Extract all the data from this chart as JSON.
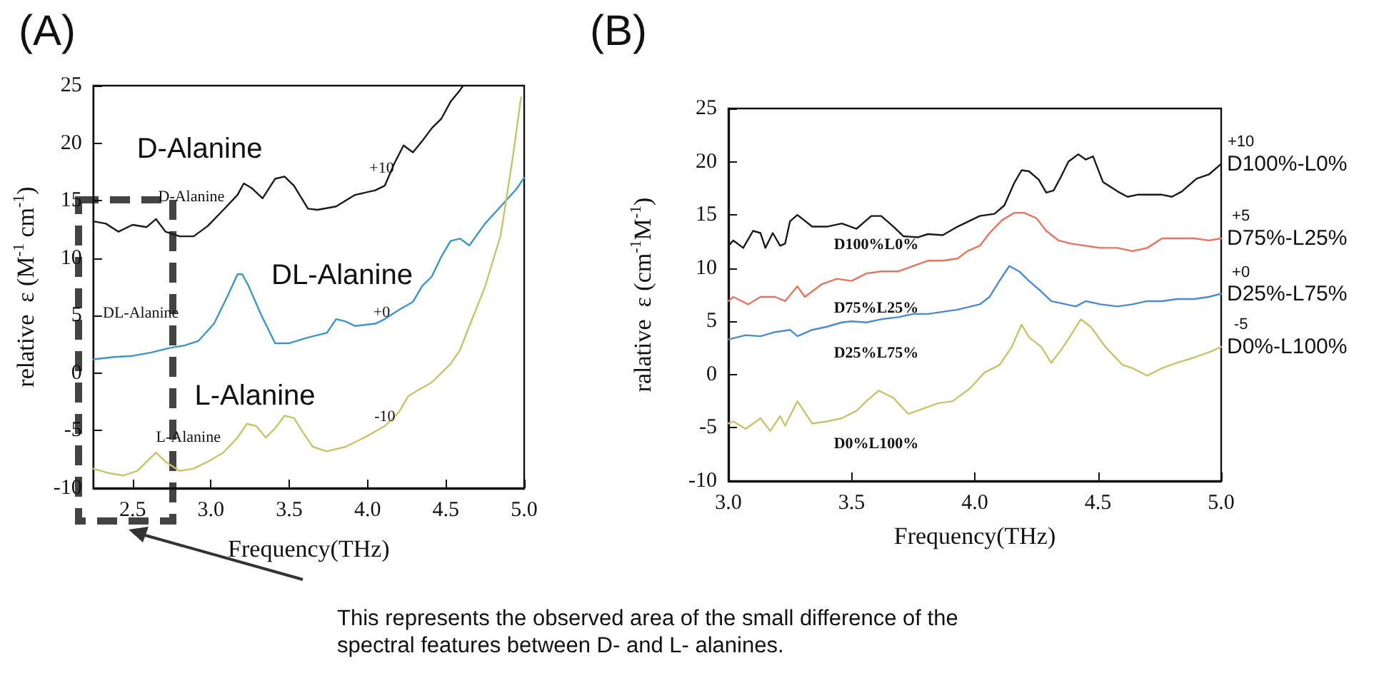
{
  "chart_data": [
    {
      "type": "line",
      "title": "(A)",
      "xlabel": "Frequency(THz)",
      "ylabel": "relative  ε (M$^{-1}$ cm$^{-1}$)",
      "xlim": [
        2.25,
        5.0
      ],
      "xticks": [
        {
          "value": 2.5,
          "label": "2.5"
        },
        {
          "value": 3,
          "label": "3.0"
        },
        {
          "value": 3.5,
          "label": "3.5"
        },
        {
          "value": 4,
          "label": "4.0"
        },
        {
          "value": 4.5,
          "label": "4.5"
        },
        {
          "value": 5,
          "label": "5.0"
        }
      ],
      "ylim": [
        -10,
        25
      ],
      "yticks": [
        -10,
        -5,
        0,
        5,
        10,
        15,
        20,
        25
      ],
      "grid": false,
      "legend": false,
      "marker": "none",
      "series": [
        {
          "color": "#1a1a1a",
          "x": [
            2.25,
            2.33,
            2.41,
            2.5,
            2.59,
            2.65,
            2.71,
            2.8,
            2.89,
            2.98,
            3.08,
            3.17,
            3.21,
            3.26,
            3.33,
            3.41,
            3.47,
            3.53,
            3.62,
            3.68,
            3.8,
            3.92,
            4.05,
            4.11,
            4.17,
            4.23,
            4.29,
            4.35,
            4.41,
            4.47,
            4.53,
            4.59,
            4.61
          ],
          "values": [
            13.2,
            13.0,
            12.3,
            12.9,
            12.7,
            13.4,
            12.3,
            11.9,
            11.9,
            12.8,
            14.2,
            15.5,
            16.5,
            16.1,
            15.2,
            16.9,
            17.1,
            16.3,
            14.3,
            14.2,
            14.5,
            15.5,
            15.9,
            16.3,
            18.2,
            19.8,
            19.2,
            20.2,
            21.3,
            22.1,
            23.6,
            24.6,
            25
          ]
        },
        {
          "color": "#3c96c8",
          "x": [
            2.25,
            2.38,
            2.5,
            2.62,
            2.74,
            2.83,
            2.92,
            3.02,
            3.11,
            3.17,
            3.2,
            3.24,
            3.32,
            3.41,
            3.5,
            3.62,
            3.74,
            3.8,
            3.86,
            3.92,
            4.05,
            4.11,
            4.2,
            4.29,
            4.35,
            4.41,
            4.47,
            4.53,
            4.59,
            4.65,
            4.75,
            4.85,
            4.95,
            5.0
          ],
          "values": [
            1.2,
            1.4,
            1.5,
            1.8,
            2.2,
            2.4,
            2.8,
            4.3,
            6.8,
            8.6,
            8.6,
            7.6,
            5.1,
            2.6,
            2.6,
            3.1,
            3.5,
            4.7,
            4.5,
            4.1,
            4.3,
            4.7,
            5.5,
            6.2,
            7.6,
            8.4,
            10.1,
            11.5,
            11.7,
            11.1,
            13.0,
            14.5,
            16.0,
            17.0
          ]
        },
        {
          "color": "#c9c46a",
          "x": [
            2.25,
            2.35,
            2.44,
            2.53,
            2.59,
            2.65,
            2.71,
            2.8,
            2.89,
            2.98,
            3.08,
            3.17,
            3.23,
            3.29,
            3.35,
            3.41,
            3.47,
            3.53,
            3.59,
            3.65,
            3.74,
            3.86,
            3.98,
            4.11,
            4.2,
            4.26,
            4.32,
            4.41,
            4.47,
            4.53,
            4.59,
            4.65,
            4.75,
            4.85,
            4.93,
            4.98
          ],
          "values": [
            -8.3,
            -8.7,
            -8.9,
            -8.5,
            -7.7,
            -6.9,
            -7.7,
            -8.5,
            -8.3,
            -7.7,
            -6.9,
            -5.6,
            -4.4,
            -4.6,
            -5.6,
            -4.8,
            -3.7,
            -3.9,
            -5.2,
            -6.4,
            -6.8,
            -6.4,
            -5.6,
            -4.6,
            -3.4,
            -2.0,
            -1.5,
            -0.8,
            0.0,
            0.8,
            2.0,
            4.1,
            7.5,
            12,
            19,
            24
          ]
        }
      ],
      "annotations": [
        "D-Alanine",
        "DL-Alanine",
        "L-Alanine",
        "D-Alanine",
        "DL-Alanine",
        "L-Alanine",
        "+10",
        "+0",
        "-10",
        "This represents the observed area of the small difference of the spectral features between D- and L- alanines."
      ]
    },
    {
      "type": "line",
      "title": "(B)",
      "xlabel": "Frequency(THz)",
      "ylabel": "ralative  ε (cm$^{-1}$M$^{-1}$)",
      "xlim": [
        3.0,
        5.0
      ],
      "xticks": [
        {
          "value": 3,
          "label": "3.0"
        },
        {
          "value": 3.5,
          "label": "3.5"
        },
        {
          "value": 4,
          "label": "4.0"
        },
        {
          "value": 4.5,
          "label": "4.5"
        },
        {
          "value": 5,
          "label": "5.0"
        }
      ],
      "ylim": [
        -10,
        25
      ],
      "yticks": [
        -10,
        -5,
        0,
        5,
        10,
        15,
        20,
        25
      ],
      "grid": false,
      "legend": false,
      "marker": "none",
      "series": [
        {
          "name": "D100%-L0%",
          "color": "#1a1a1a",
          "x": [
            3.0,
            3.02,
            3.06,
            3.1,
            3.13,
            3.15,
            3.18,
            3.21,
            3.23,
            3.25,
            3.28,
            3.34,
            3.4,
            3.46,
            3.52,
            3.58,
            3.62,
            3.67,
            3.71,
            3.77,
            3.81,
            3.87,
            3.93,
            4.02,
            4.08,
            4.12,
            4.16,
            4.19,
            4.22,
            4.26,
            4.29,
            4.32,
            4.35,
            4.38,
            4.42,
            4.45,
            4.48,
            4.52,
            4.58,
            4.62,
            4.66,
            4.72,
            4.76,
            4.8,
            4.84,
            4.9,
            4.95,
            5.0
          ],
          "values": [
            12.1,
            12.6,
            11.9,
            13.5,
            13.3,
            11.9,
            13.3,
            12.1,
            12.3,
            14.4,
            15.0,
            13.9,
            13.9,
            14.2,
            13.7,
            14.9,
            14.9,
            13.9,
            13.0,
            12.9,
            13.2,
            13.1,
            13.9,
            14.9,
            15.1,
            15.9,
            18.0,
            19.2,
            19.1,
            18.3,
            17.1,
            17.3,
            18.6,
            20.0,
            20.7,
            20.2,
            20.5,
            18.1,
            17.2,
            16.7,
            16.9,
            16.9,
            16.9,
            16.7,
            17.2,
            18.4,
            18.8,
            19.8
          ]
        },
        {
          "name": "D75%-L25%",
          "color": "#e8735f",
          "x": [
            3.0,
            3.02,
            3.08,
            3.13,
            3.19,
            3.23,
            3.28,
            3.31,
            3.38,
            3.44,
            3.5,
            3.56,
            3.62,
            3.69,
            3.75,
            3.81,
            3.87,
            3.93,
            3.97,
            4.02,
            4.06,
            4.11,
            4.16,
            4.2,
            4.25,
            4.29,
            4.34,
            4.39,
            4.45,
            4.51,
            4.58,
            4.64,
            4.7,
            4.76,
            4.82,
            4.89,
            4.95,
            5.0
          ],
          "values": [
            6.9,
            7.3,
            6.6,
            7.3,
            7.3,
            6.9,
            8.3,
            7.3,
            8.5,
            9.0,
            8.8,
            9.5,
            9.7,
            9.7,
            10.2,
            10.7,
            10.7,
            10.9,
            11.6,
            12.1,
            13.3,
            14.5,
            15.2,
            15.2,
            14.7,
            13.5,
            12.6,
            12.3,
            12.1,
            11.9,
            11.9,
            11.6,
            11.9,
            12.8,
            12.8,
            12.8,
            12.6,
            12.8
          ]
        },
        {
          "name": "D25%-L75%",
          "color": "#4b8bd0",
          "x": [
            3.0,
            3.07,
            3.13,
            3.19,
            3.25,
            3.28,
            3.34,
            3.4,
            3.46,
            3.5,
            3.56,
            3.62,
            3.69,
            3.75,
            3.81,
            3.87,
            3.93,
            4.02,
            4.06,
            4.1,
            4.14,
            4.18,
            4.22,
            4.27,
            4.31,
            4.37,
            4.41,
            4.45,
            4.51,
            4.58,
            4.64,
            4.7,
            4.76,
            4.82,
            4.89,
            4.95,
            5.0
          ],
          "values": [
            3.3,
            3.7,
            3.6,
            4.0,
            4.2,
            3.6,
            4.2,
            4.5,
            4.9,
            5.0,
            4.9,
            5.2,
            5.4,
            5.7,
            5.7,
            5.9,
            6.1,
            6.6,
            7.3,
            8.8,
            10.2,
            9.7,
            8.8,
            7.8,
            6.9,
            6.6,
            6.4,
            6.9,
            6.6,
            6.4,
            6.6,
            6.9,
            6.9,
            7.1,
            7.1,
            7.3,
            7.6
          ]
        },
        {
          "name": "D0%-L100%",
          "color": "#c9c46a",
          "x": [
            3.0,
            3.02,
            3.07,
            3.13,
            3.17,
            3.21,
            3.23,
            3.28,
            3.34,
            3.4,
            3.46,
            3.52,
            3.56,
            3.61,
            3.67,
            3.73,
            3.79,
            3.85,
            3.91,
            3.98,
            4.04,
            4.1,
            4.15,
            4.19,
            4.22,
            4.27,
            4.31,
            4.35,
            4.39,
            4.43,
            4.47,
            4.53,
            4.6,
            4.64,
            4.7,
            4.76,
            4.82,
            4.89,
            4.95,
            5.0
          ],
          "values": [
            -4.6,
            -4.4,
            -5.1,
            -4.1,
            -5.3,
            -3.9,
            -4.8,
            -2.5,
            -4.6,
            -4.4,
            -4.1,
            -3.4,
            -2.5,
            -1.5,
            -2.2,
            -3.7,
            -3.2,
            -2.7,
            -2.5,
            -1.3,
            0.2,
            0.9,
            2.6,
            4.7,
            3.5,
            2.6,
            1.1,
            2.3,
            3.7,
            5.2,
            4.5,
            2.6,
            0.9,
            0.6,
            -0.1,
            0.6,
            1.1,
            1.6,
            2.1,
            2.6
          ]
        }
      ],
      "annotations": [
        "D100%L0%",
        "D75%L25%",
        "D25%L75%",
        "D0%L100%",
        "+10",
        "+5",
        "+0",
        "-5"
      ]
    }
  ]
}
